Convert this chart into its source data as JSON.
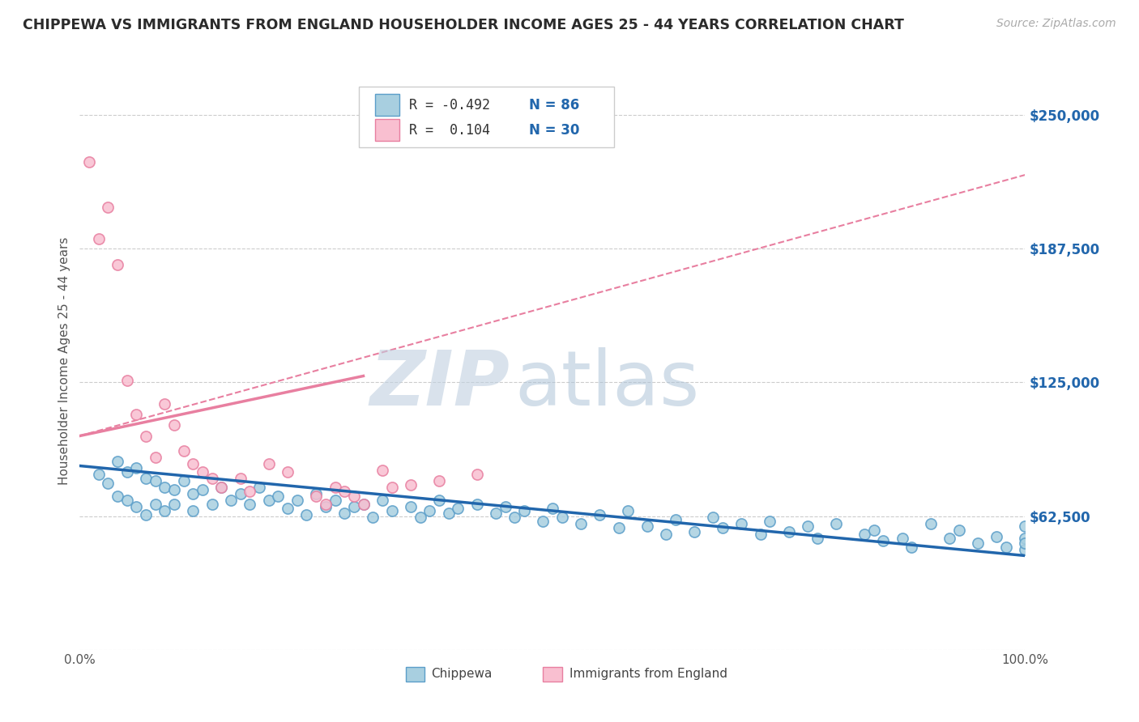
{
  "title": "CHIPPEWA VS IMMIGRANTS FROM ENGLAND HOUSEHOLDER INCOME AGES 25 - 44 YEARS CORRELATION CHART",
  "source": "Source: ZipAtlas.com",
  "ylabel": "Householder Income Ages 25 - 44 years",
  "xtick_left": "0.0%",
  "xtick_right": "100.0%",
  "yticks": [
    0,
    62500,
    125000,
    187500,
    250000
  ],
  "ytick_labels": [
    "",
    "$62,500",
    "$125,000",
    "$187,500",
    "$250,000"
  ],
  "xlim": [
    0,
    100
  ],
  "ylim": [
    20000,
    270000
  ],
  "R1": "-0.492",
  "N1": "86",
  "R2": "0.104",
  "N2": "30",
  "color_blue_fill": "#a8cfe0",
  "color_blue_edge": "#5b9ec9",
  "color_pink_fill": "#f9bfd0",
  "color_pink_edge": "#e87fa0",
  "color_trend_blue": "#2166ac",
  "color_trend_pink_solid": "#e87fa0",
  "color_trend_dashed": "#e87fa0",
  "watermark_zip_color": "#c8d8e8",
  "watermark_atlas_color": "#aec4d8",
  "legend_label1": "Chippewa",
  "legend_label2": "Immigrants from England",
  "blue_x": [
    2,
    3,
    4,
    4,
    5,
    5,
    6,
    6,
    7,
    7,
    8,
    8,
    9,
    9,
    10,
    10,
    11,
    12,
    12,
    13,
    14,
    15,
    16,
    17,
    18,
    19,
    20,
    21,
    22,
    23,
    24,
    25,
    26,
    27,
    28,
    29,
    30,
    31,
    32,
    33,
    35,
    36,
    37,
    38,
    39,
    40,
    42,
    44,
    45,
    46,
    47,
    49,
    50,
    51,
    53,
    55,
    57,
    58,
    60,
    62,
    63,
    65,
    67,
    68,
    70,
    72,
    73,
    75,
    77,
    78,
    80,
    83,
    84,
    85,
    87,
    88,
    90,
    92,
    93,
    95,
    97,
    98,
    100,
    100,
    100,
    100
  ],
  "blue_y": [
    82000,
    78000,
    88000,
    72000,
    83000,
    70000,
    85000,
    67000,
    80000,
    63000,
    79000,
    68000,
    76000,
    65000,
    75000,
    68000,
    79000,
    73000,
    65000,
    75000,
    68000,
    76000,
    70000,
    73000,
    68000,
    76000,
    70000,
    72000,
    66000,
    70000,
    63000,
    73000,
    67000,
    70000,
    64000,
    67000,
    68000,
    62000,
    70000,
    65000,
    67000,
    62000,
    65000,
    70000,
    64000,
    66000,
    68000,
    64000,
    67000,
    62000,
    65000,
    60000,
    66000,
    62000,
    59000,
    63000,
    57000,
    65000,
    58000,
    54000,
    61000,
    55000,
    62000,
    57000,
    59000,
    54000,
    60000,
    55000,
    58000,
    52000,
    59000,
    54000,
    56000,
    51000,
    52000,
    48000,
    59000,
    52000,
    56000,
    50000,
    53000,
    48000,
    52000,
    47000,
    58000,
    50000
  ],
  "pink_x": [
    1,
    2,
    3,
    4,
    5,
    6,
    7,
    8,
    9,
    10,
    11,
    12,
    13,
    14,
    15,
    17,
    18,
    20,
    22,
    25,
    26,
    27,
    28,
    29,
    30,
    32,
    33,
    35,
    38,
    42
  ],
  "pink_y": [
    228000,
    192000,
    207000,
    180000,
    126000,
    110000,
    100000,
    90000,
    115000,
    105000,
    93000,
    87000,
    83000,
    80000,
    76000,
    80000,
    74000,
    87000,
    83000,
    72000,
    68000,
    76000,
    74000,
    72000,
    68000,
    84000,
    76000,
    77000,
    79000,
    82000
  ],
  "blue_trend_x0": 0,
  "blue_trend_y0": 86000,
  "blue_trend_x1": 100,
  "blue_trend_y1": 44000,
  "pink_solid_x0": 0,
  "pink_solid_y0": 100000,
  "pink_solid_x1": 30,
  "pink_solid_y1": 128000,
  "dash_trend_x0": 0,
  "dash_trend_y0": 100000,
  "dash_trend_x1": 100,
  "dash_trend_y1": 222000
}
